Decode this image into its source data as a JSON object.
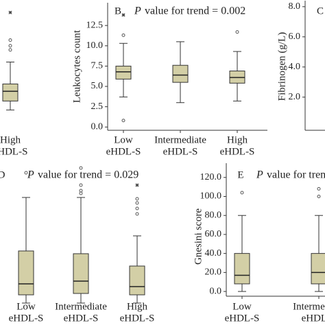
{
  "chart_data": [
    {
      "type": "box",
      "categories": [
        [
          "High",
          "eHDL-S"
        ]
      ],
      "ylim": [
        -0.4,
        15.3
      ],
      "boxes": [
        {
          "whisker_low": 2.1,
          "q1": 3.2,
          "median": 4.4,
          "q3": 5.3,
          "whisker_high": 8.0,
          "outliers": [
            9.5,
            10.0,
            10.7
          ],
          "extremes": [
            14.1
          ]
        }
      ]
    },
    {
      "type": "box",
      "panel_label": "B",
      "title_italic": "P",
      "title": "value for trend = 0.002",
      "ylabel": "Leukocytes count",
      "categories": [
        [
          "Low",
          "eHDL-S"
        ],
        [
          "Intermediate",
          "eHDL-S"
        ],
        [
          "High",
          "eHDL-S"
        ]
      ],
      "ylim": [
        -0.4,
        15.3
      ],
      "yticks": [
        {
          "value": 0,
          "label": "0.0"
        },
        {
          "value": 2.5,
          "label": "2.5"
        },
        {
          "value": 5,
          "label": "5.0"
        },
        {
          "value": 7.5,
          "label": "7.5"
        },
        {
          "value": 10,
          "label": "10.0"
        },
        {
          "value": 12.5,
          "label": "12.5"
        }
      ],
      "boxes": [
        {
          "whisker_low": 3.7,
          "q1": 5.9,
          "median": 6.8,
          "q3": 7.5,
          "whisker_high": 10.3,
          "outliers": [
            0.8,
            11.3
          ],
          "extremes": [
            13.8
          ]
        },
        {
          "whisker_low": 3.0,
          "q1": 5.5,
          "median": 6.4,
          "q3": 7.6,
          "whisker_high": 10.5,
          "outliers": [],
          "extremes": []
        },
        {
          "whisker_low": 3.2,
          "q1": 5.4,
          "median": 6.1,
          "q3": 6.9,
          "whisker_high": 9.3,
          "outliers": [
            11.7
          ],
          "extremes": []
        }
      ]
    },
    {
      "type": "box",
      "panel_label": "C",
      "ylabel": "Fibrinogen (g/L)",
      "categories": [],
      "ylim": [
        -0.2,
        8.4
      ],
      "yticks": [
        {
          "value": 2,
          "label": "2.0"
        },
        {
          "value": 4,
          "label": "4.0"
        },
        {
          "value": 6,
          "label": "6.0"
        },
        {
          "value": 8,
          "label": "8.0"
        }
      ],
      "boxes": []
    },
    {
      "type": "box",
      "panel_label": "D",
      "title_italic": "P",
      "title": "value for trend = 0.029",
      "categories": [
        [
          "Low",
          "eHDL-S"
        ],
        [
          "Intermediate",
          "eHDL-S"
        ],
        [
          "High",
          "eHDL-S"
        ]
      ],
      "ylim": [
        0,
        200
      ],
      "boxes": [
        {
          "whisker_low": 0,
          "q1": 12,
          "median": 28,
          "q3": 76,
          "whisker_high": 154,
          "outliers": [
            190
          ],
          "extremes": []
        },
        {
          "whisker_low": 0,
          "q1": 14,
          "median": 32,
          "q3": 72,
          "whisker_high": 154,
          "outliers": [
            160,
            164,
            172,
            197
          ],
          "extremes": []
        },
        {
          "whisker_low": 0,
          "q1": 12,
          "median": 24,
          "q3": 54,
          "whisker_high": 98,
          "outliers": [
            130,
            138,
            146,
            152
          ],
          "extremes": [
            172
          ]
        }
      ]
    },
    {
      "type": "box",
      "panel_label": "E",
      "title_italic": "P",
      "title": "value for trend",
      "ylabel": "Gnesini score",
      "categories": [
        [
          "Low",
          "eHDL-S"
        ],
        [
          "Intermediate",
          "eHDL-S"
        ]
      ],
      "ylim": [
        -5,
        135
      ],
      "yticks": [
        {
          "value": 0,
          "label": "0.0"
        },
        {
          "value": 20,
          "label": "20.0"
        },
        {
          "value": 40,
          "label": "40.0"
        },
        {
          "value": 60,
          "label": "60.0"
        },
        {
          "value": 80,
          "label": "80.0"
        },
        {
          "value": 100,
          "label": "100.0"
        },
        {
          "value": 120,
          "label": "120.0"
        }
      ],
      "boxes": [
        {
          "whisker_low": 0,
          "q1": 8,
          "median": 17,
          "q3": 40,
          "whisker_high": 80,
          "outliers": [
            104
          ],
          "extremes": []
        },
        {
          "whisker_low": 0,
          "q1": 8,
          "median": 20,
          "q3": 40,
          "whisker_high": 80,
          "outliers": [
            100,
            108
          ],
          "extremes": []
        }
      ]
    }
  ]
}
